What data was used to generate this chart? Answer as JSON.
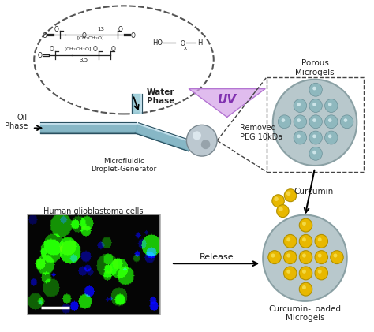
{
  "bg_color": "#ffffff",
  "text_color": "#2a2a2a",
  "labels": {
    "oil_phase": "Oil\nPhase",
    "water_phase": "Water\nPhase",
    "microfluidic": "Microfluidic\nDroplet-Generator",
    "uv": "UV",
    "porous_microgels": "Porous\nMicrogels",
    "removed_peg": "Removed\nPEG 10kDa",
    "curcumin": "Curcumin",
    "curcumin_loaded": "Curcumin-Loaded\nMicrogels",
    "release": "Release",
    "human_cells": "Human glioblastoma cells"
  },
  "microgel_color_outer": "#b8c8cc",
  "microgel_color_inner": "#8fb8be",
  "sphere_color": "#b8c4cc",
  "curcumin_color": "#e8b800",
  "uv_triangle_color": "#d4a0e8",
  "channel_color": "#7ab0c0",
  "ellipse_color": "#555555"
}
